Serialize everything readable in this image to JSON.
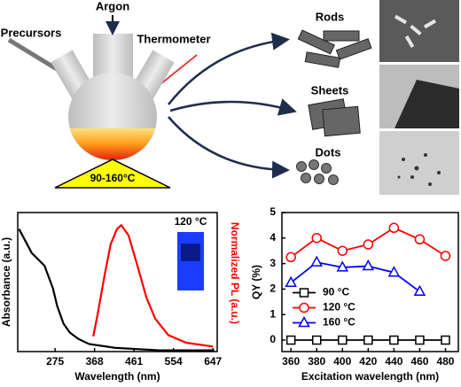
{
  "diagram": {
    "gas": "Argon",
    "precursors": "Precursors",
    "thermometer": "Thermometer",
    "temperature": "90-160°C",
    "products": [
      "Rods",
      "Sheets",
      "Dots"
    ]
  },
  "chart_data": [
    {
      "type": "line",
      "xlabel": "Wavelength (nm)",
      "ylabel": "Absorbance (a.u.)",
      "y2label": "Normalized PL (a.u.)",
      "annotation": "120 °C",
      "xlim": [
        187,
        657
      ],
      "xticks": [
        275,
        368,
        461,
        554,
        647
      ],
      "ylim": [
        0,
        1.1
      ],
      "y2lim": [
        0,
        1.1
      ],
      "series": [
        {
          "color": "#000000",
          "x": [
            190,
            220,
            250,
            270,
            280,
            295,
            310,
            330,
            355,
            415,
            520,
            650
          ],
          "values": [
            0.97,
            0.78,
            0.68,
            0.5,
            0.36,
            0.22,
            0.15,
            0.1,
            0.06,
            0.03,
            0.01,
            0.01
          ]
        },
        {
          "color": "#ff0000",
          "axis": "y2",
          "x": [
            365,
            375,
            392,
            406,
            421,
            431,
            448,
            469,
            490,
            511,
            542,
            584,
            647
          ],
          "values": [
            0.12,
            0.29,
            0.61,
            0.85,
            0.97,
            1.0,
            0.92,
            0.68,
            0.43,
            0.26,
            0.13,
            0.07,
            0.04
          ]
        }
      ]
    },
    {
      "type": "line",
      "xlabel": "Excitation wavelength (nm)",
      "ylabel": "QY (%)",
      "legend": "center left",
      "x": [
        360,
        380,
        400,
        420,
        440,
        460,
        480
      ],
      "xlim": [
        353,
        490
      ],
      "xticks": [
        360,
        380,
        400,
        420,
        440,
        460,
        480
      ],
      "ylim": [
        -0.45,
        5
      ],
      "yticks": [
        0,
        1,
        2,
        3,
        4,
        5
      ],
      "series": [
        {
          "name": "90 °C",
          "color": "#000000",
          "marker": "square",
          "values": [
            0,
            0,
            0,
            0,
            0,
            0,
            0
          ]
        },
        {
          "name": "120 °C",
          "color": "#ff0000",
          "marker": "circle",
          "values": [
            3.25,
            4.0,
            3.5,
            3.75,
            4.4,
            3.95,
            3.3
          ]
        },
        {
          "name": "160 °C",
          "color": "#0000ff",
          "marker": "triangle",
          "values": [
            2.25,
            3.05,
            2.85,
            2.9,
            2.65,
            1.9,
            null
          ]
        }
      ]
    }
  ]
}
